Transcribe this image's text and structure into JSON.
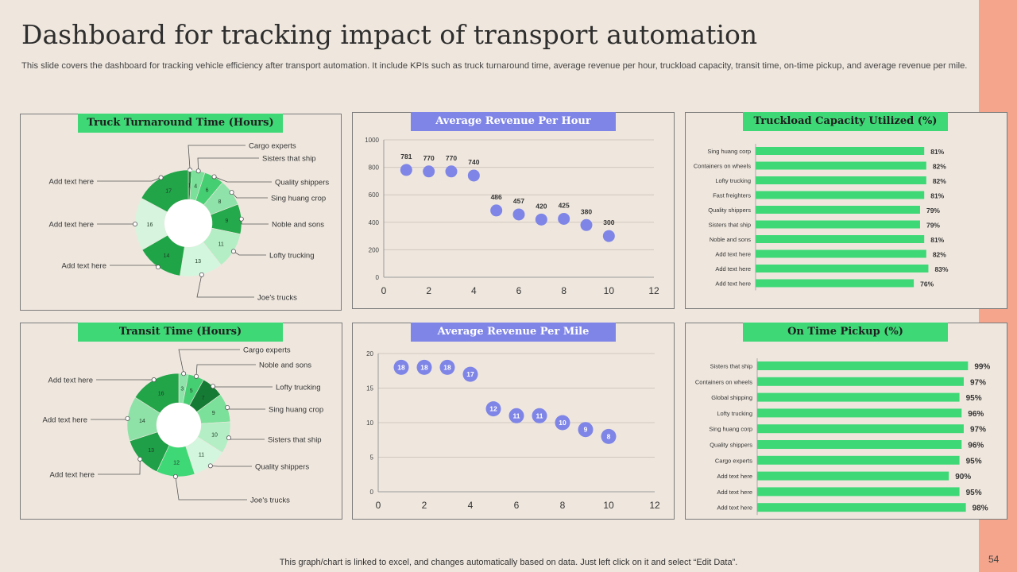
{
  "title": "Dashboard for tracking impact of transport automation",
  "subtitle": "This slide covers the dashboard for tracking vehicle efficiency after transport automation. It include KPIs such as truck turnaround time, average revenue per hour, truckload capacity, transit time, on-time pickup, and average revenue per mile.",
  "footer": "This graph/chart is linked to excel,  and changes automatically based on data. Just left click on it and select “Edit Data”.",
  "page_number": "54",
  "colors": {
    "green": "#3fd877",
    "purple": "#7f85e6",
    "stripe": "#f4a58c",
    "background": "#efe7de"
  },
  "chart_data": [
    {
      "id": "truck_turnaround",
      "type": "donut",
      "title": "Truck Turnaround Time (Hours)",
      "slices": [
        {
          "label": "Cargo experts",
          "value": 1,
          "color": "#1a8a3a"
        },
        {
          "label": "Sisters that ship",
          "value": 4,
          "color": "#7be09a"
        },
        {
          "label": "Quality shippers",
          "value": 6,
          "color": "#46cf72"
        },
        {
          "label": "Sing huang crop",
          "value": 8,
          "color": "#8fe3aa"
        },
        {
          "label": "Noble and sons",
          "value": 9,
          "color": "#24a94c"
        },
        {
          "label": "Lofty trucking",
          "value": 11,
          "color": "#b3eec5"
        },
        {
          "label": "Joe's trucks",
          "value": 13,
          "color": "#d3f6de"
        },
        {
          "label": "Add text here",
          "value": 14,
          "color": "#1fa548"
        },
        {
          "label": "Add text here",
          "value": 16,
          "color": "#d7f4df"
        },
        {
          "label": "Add text here",
          "value": 17,
          "color": "#22a449"
        }
      ]
    },
    {
      "id": "revenue_per_hour",
      "type": "scatter",
      "title": "Average Revenue Per Hour",
      "x": [
        1,
        2,
        3,
        4,
        5,
        6,
        7,
        8,
        9,
        10
      ],
      "y": [
        781,
        770,
        770,
        740,
        486,
        457,
        420,
        425,
        380,
        300
      ],
      "xlim": [
        0,
        12
      ],
      "ylim": [
        0,
        1000
      ],
      "xticks": [
        0,
        2,
        4,
        6,
        8,
        10,
        12
      ],
      "yticks": [
        0,
        200,
        400,
        600,
        800,
        1000
      ],
      "label_position": "above",
      "grid": true
    },
    {
      "id": "truckload_capacity",
      "type": "bar",
      "orientation": "horizontal",
      "title": "Truckload Capacity Utilized (%)",
      "categories": [
        "Sing huang corp",
        "Containers on wheels",
        "Lofty trucking",
        "Fast freighters",
        "Quality shippers",
        "Sisters that ship",
        "Noble and sons",
        "Add text here",
        "Add text here",
        "Add text here"
      ],
      "values": [
        81,
        82,
        82,
        81,
        79,
        79,
        81,
        82,
        83,
        76
      ],
      "value_suffix": "%"
    },
    {
      "id": "transit_time",
      "type": "donut",
      "title": "Transit Time (Hours)",
      "slices": [
        {
          "label": "Cargo experts",
          "value": 3,
          "color": "#8fe3aa"
        },
        {
          "label": "Noble and sons",
          "value": 5,
          "color": "#46cf72"
        },
        {
          "label": "Lofty trucking",
          "value": 7,
          "color": "#157a33"
        },
        {
          "label": "Sing huang crop",
          "value": 9,
          "color": "#7be09a"
        },
        {
          "label": "Sisters that ship",
          "value": 10,
          "color": "#b3eec5"
        },
        {
          "label": "Quality shippers",
          "value": 11,
          "color": "#d3f6de"
        },
        {
          "label": "Joe's trucks",
          "value": 12,
          "color": "#3fd877"
        },
        {
          "label": "Add text here",
          "value": 13,
          "color": "#1f9f47"
        },
        {
          "label": "Add text here",
          "value": 14,
          "color": "#8ee2a8"
        },
        {
          "label": "Add text here",
          "value": 16,
          "color": "#22a449"
        }
      ]
    },
    {
      "id": "revenue_per_mile",
      "type": "scatter",
      "title": "Average Revenue Per Mile",
      "x": [
        1,
        2,
        3,
        4,
        5,
        6,
        7,
        8,
        9,
        10
      ],
      "y": [
        18,
        18,
        18,
        17,
        12,
        11,
        11,
        10,
        9,
        8
      ],
      "xlim": [
        0,
        12
      ],
      "ylim": [
        0,
        20
      ],
      "xticks": [
        0,
        2,
        4,
        6,
        8,
        10,
        12
      ],
      "yticks": [
        0,
        5,
        10,
        15,
        20
      ],
      "label_position": "inside",
      "grid": true
    },
    {
      "id": "on_time_pickup",
      "type": "bar",
      "orientation": "horizontal",
      "title": "On Time Pickup (%)",
      "categories": [
        "Sisters that ship",
        "Containers on wheels",
        "Global shipping",
        "Lofty trucking",
        "Sing huang corp",
        "Quality shippers",
        "Cargo experts",
        "Add text here",
        "Add text here",
        "Add text here"
      ],
      "values": [
        99,
        97,
        95,
        96,
        97,
        96,
        95,
        90,
        95,
        98
      ],
      "value_suffix": "%"
    }
  ]
}
